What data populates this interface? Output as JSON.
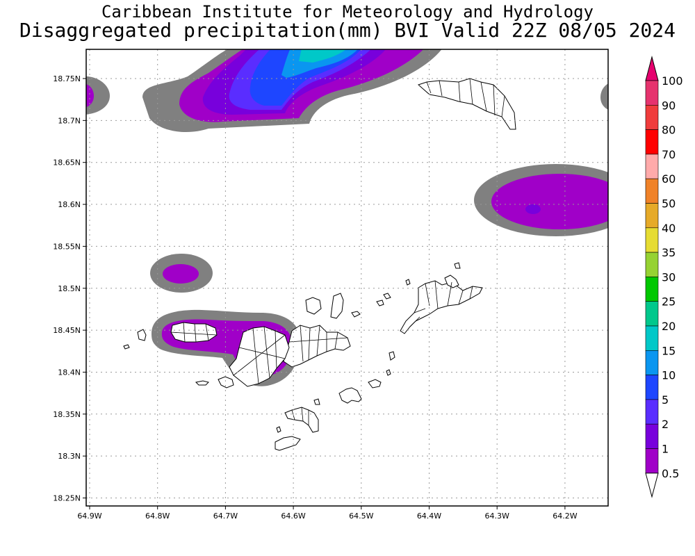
{
  "header": {
    "title": "Caribbean Institute for Meteorology and Hydrology",
    "subtitle": "Disaggregated precipitation(mm) BVI Valid 22Z 08/05 2024"
  },
  "map": {
    "lon_ticks": [
      "64.9W",
      "64.8W",
      "64.7W",
      "64.6W",
      "64.5W",
      "64.4W",
      "64.3W",
      "64.2W"
    ],
    "lat_ticks": [
      "18.75N",
      "18.7N",
      "18.65N",
      "18.6N",
      "18.55N",
      "18.5N",
      "18.45N",
      "18.4N",
      "18.35N",
      "18.3N",
      "18.25N"
    ],
    "colors": {
      "grey": "#808080",
      "magenta": "#a000c8",
      "purple": "#7800dc",
      "blue_violet": "#5a2dff",
      "blue": "#1e46ff",
      "light_blue": "#0a96f0",
      "teal": "#00c8c8"
    }
  },
  "legend": {
    "labels": [
      "100",
      "90",
      "80",
      "70",
      "60",
      "50",
      "40",
      "35",
      "30",
      "25",
      "20",
      "15",
      "10",
      "5",
      "2",
      "1",
      "0.5"
    ],
    "colors": [
      "#e6336e",
      "#f03c3c",
      "#ff0000",
      "#ffaaaa",
      "#f08228",
      "#e6aa28",
      "#e6dc32",
      "#96d232",
      "#00c800",
      "#00c88c",
      "#00c8c8",
      "#0a96f0",
      "#1e46ff",
      "#5a2dff",
      "#7800dc",
      "#a000c8",
      "#808080"
    ],
    "bottom_arrow_color": "#ffffff",
    "top_arrow_color": "#e6006e"
  }
}
